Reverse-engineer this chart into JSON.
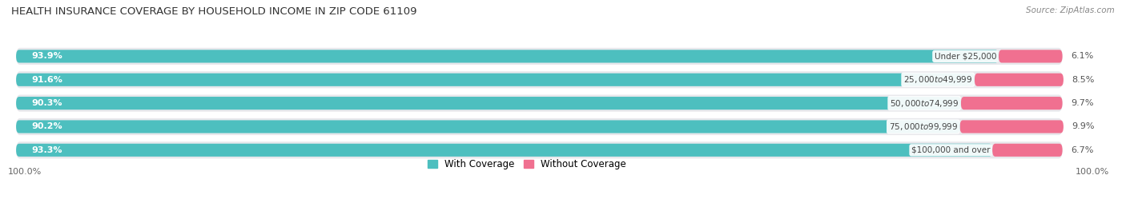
{
  "title": "HEALTH INSURANCE COVERAGE BY HOUSEHOLD INCOME IN ZIP CODE 61109",
  "source": "Source: ZipAtlas.com",
  "categories": [
    "Under $25,000",
    "$25,000 to $49,999",
    "$50,000 to $74,999",
    "$75,000 to $99,999",
    "$100,000 and over"
  ],
  "with_coverage": [
    93.9,
    91.6,
    90.3,
    90.2,
    93.3
  ],
  "without_coverage": [
    6.1,
    8.5,
    9.7,
    9.9,
    6.7
  ],
  "color_with": "#4DBFBF",
  "color_without": "#F07090",
  "color_track": "#E8E8EC",
  "background": "#FFFFFF",
  "title_fontsize": 9.5,
  "label_fontsize": 8.0,
  "tick_fontsize": 8.0,
  "legend_fontsize": 8.5
}
